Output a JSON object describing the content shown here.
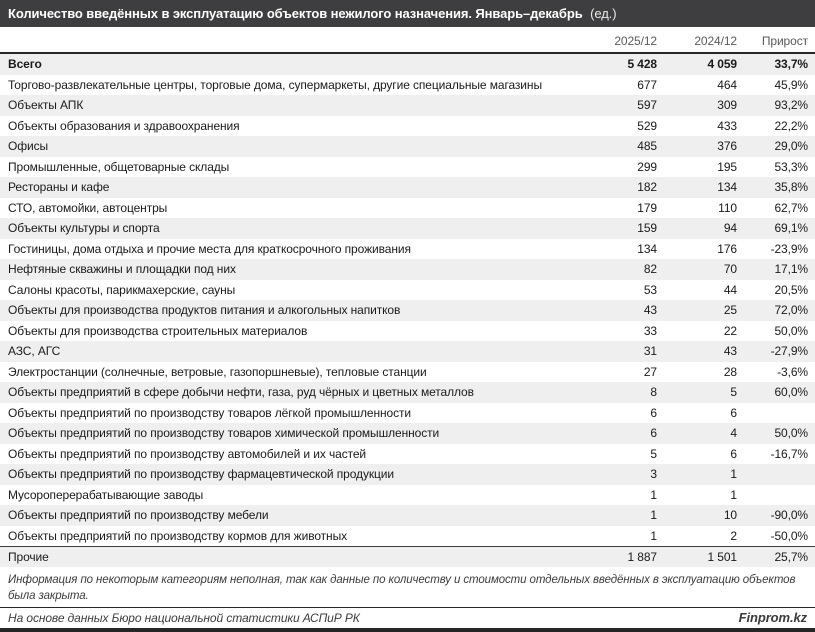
{
  "title": {
    "bold": "Количество введённых в эксплуатацию объектов нежилого назначения. Январь–декабрь",
    "unit": "(ед.)"
  },
  "chart_data": {
    "type": "table",
    "title": "Количество введённых в эксплуатацию объектов нежилого назначения. Январь–декабрь (ед.)",
    "columns": [
      "2025/12",
      "2024/12",
      "Прирост"
    ],
    "rows": [
      {
        "label": "Всего",
        "v1": "5 428",
        "v2": "4 059",
        "growth": "33,7%",
        "bold": true
      },
      {
        "label": "Торгово-развлекательные центры, торговые дома, супермаркеты, другие специальные магазины",
        "v1": "677",
        "v2": "464",
        "growth": "45,9%"
      },
      {
        "label": "Объекты АПК",
        "v1": "597",
        "v2": "309",
        "growth": "93,2%"
      },
      {
        "label": "Объекты образования и здравоохранения",
        "v1": "529",
        "v2": "433",
        "growth": "22,2%"
      },
      {
        "label": "Офисы",
        "v1": "485",
        "v2": "376",
        "growth": "29,0%"
      },
      {
        "label": "Промышленные, общетоварные склады",
        "v1": "299",
        "v2": "195",
        "growth": "53,3%"
      },
      {
        "label": "Рестораны и кафе",
        "v1": "182",
        "v2": "134",
        "growth": "35,8%"
      },
      {
        "label": "СТО, автомойки, автоцентры",
        "v1": "179",
        "v2": "110",
        "growth": "62,7%"
      },
      {
        "label": "Объекты культуры и спорта",
        "v1": "159",
        "v2": "94",
        "growth": "69,1%"
      },
      {
        "label": "Гостиницы, дома отдыха и прочие места для краткосрочного проживания",
        "v1": "134",
        "v2": "176",
        "growth": "-23,9%"
      },
      {
        "label": "Нефтяные скважины и площадки под них",
        "v1": "82",
        "v2": "70",
        "growth": "17,1%"
      },
      {
        "label": "Салоны красоты, парикмахерские, сауны",
        "v1": "53",
        "v2": "44",
        "growth": "20,5%"
      },
      {
        "label": "Объекты для производства продуктов питания и алкогольных напитков",
        "v1": "43",
        "v2": "25",
        "growth": "72,0%"
      },
      {
        "label": "Объекты для производства строительных материалов",
        "v1": "33",
        "v2": "22",
        "growth": "50,0%"
      },
      {
        "label": "АЗС, АГС",
        "v1": "31",
        "v2": "43",
        "growth": "-27,9%"
      },
      {
        "label": "Электростанции (солнечные, ветровые, газопоршневые), тепловые станции",
        "v1": "27",
        "v2": "28",
        "growth": "-3,6%"
      },
      {
        "label": "Объекты предприятий в сфере добычи нефти, газа, руд чёрных и цветных металлов",
        "v1": "8",
        "v2": "5",
        "growth": "60,0%"
      },
      {
        "label": "Объекты предприятий по производству товаров лёгкой промышленности",
        "v1": "6",
        "v2": "6",
        "growth": ""
      },
      {
        "label": "Объекты предприятий по производству товаров химической промышленности",
        "v1": "6",
        "v2": "4",
        "growth": "50,0%"
      },
      {
        "label": "Объекты предприятий по производству автомобилей и их частей",
        "v1": "5",
        "v2": "6",
        "growth": "-16,7%"
      },
      {
        "label": "Объекты предприятий по производству фармацевтической продукции",
        "v1": "3",
        "v2": "1",
        "growth": ""
      },
      {
        "label": "Мусороперерабатывающие заводы",
        "v1": "1",
        "v2": "1",
        "growth": ""
      },
      {
        "label": "Объекты предприятий по производству мебели",
        "v1": "1",
        "v2": "10",
        "growth": "-90,0%"
      },
      {
        "label": "Объекты предприятий по производству кормов для животных",
        "v1": "1",
        "v2": "2",
        "growth": "-50,0%"
      },
      {
        "label": "Прочие",
        "v1": "1 887",
        "v2": "1 501",
        "growth": "25,7%",
        "separator": true
      }
    ]
  },
  "note": "Информация по некоторым категориям неполная, так как данные по количеству и стоимости отдельных введённых в эксплуатацию объектов была закрыта.",
  "footer": {
    "source": "На основе данных Бюро национальной статистики АСПиР РК",
    "brand": "Finprom.kz"
  },
  "colors": {
    "titlebar": "#3e3e40",
    "stripe": "#efefef",
    "rule": "#262626",
    "header_text": "#595959"
  }
}
